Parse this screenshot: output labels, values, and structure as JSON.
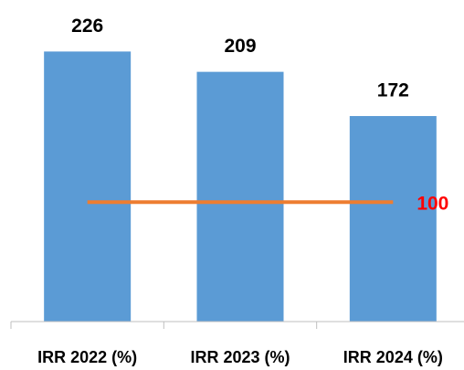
{
  "chart_data": {
    "type": "bar",
    "categories": [
      "IRR 2022 (%)",
      "IRR 2023 (%)",
      "IRR 2024 (%)"
    ],
    "values": [
      226,
      209,
      172
    ],
    "color": "#5b9bd5",
    "ylim": [
      0,
      250
    ],
    "reference_line": {
      "value": 100,
      "color": "#ed7d31",
      "label_color": "#ff0000"
    }
  }
}
